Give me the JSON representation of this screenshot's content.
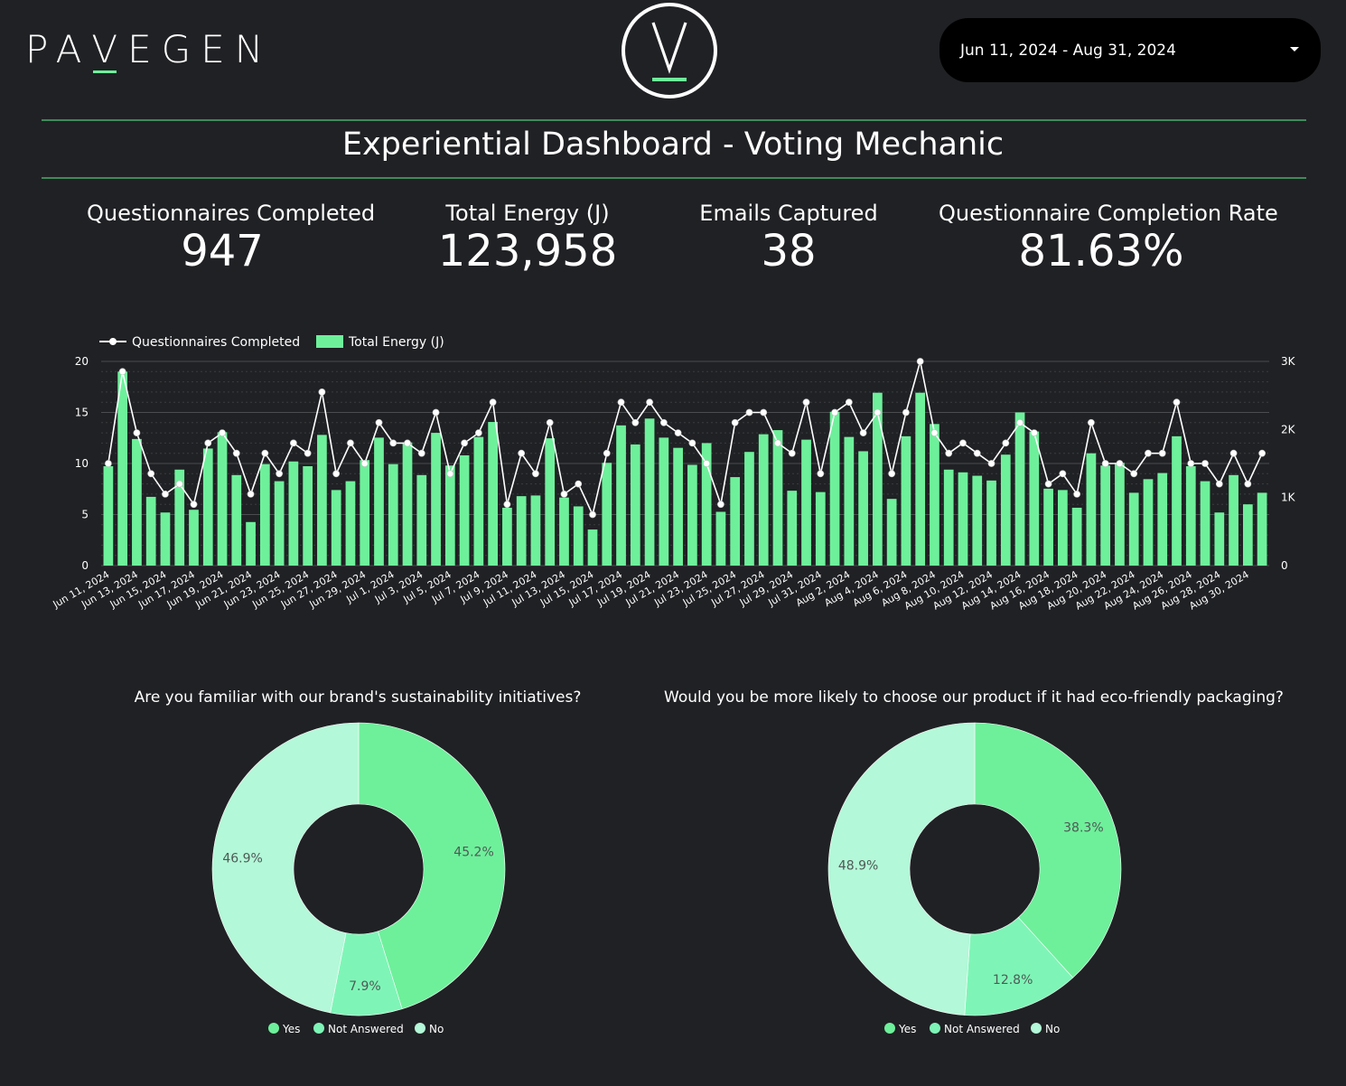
{
  "header": {
    "brand": "PAVEGEN",
    "logo_letter": "V",
    "date_range": "Jun 11, 2024 - Aug 31, 2024",
    "title": "Experiential Dashboard - Voting Mechanic"
  },
  "kpis": [
    {
      "label": "Questionnaires Completed",
      "value": "947"
    },
    {
      "label": "Total Energy (J)",
      "value": "123,958"
    },
    {
      "label": "Emails Captured",
      "value": "38"
    },
    {
      "label": "Questionnaire Completion Rate",
      "value": "81.63%"
    }
  ],
  "colors": {
    "background": "#202124",
    "accent": "#6ef09b",
    "bar": "#6ef09b",
    "line": "#ffffff",
    "yes": "#6ef09b",
    "not_answered": "#7ef5b7",
    "no": "#b3f8d8",
    "rule": "#3f8a5a"
  },
  "chart_data": [
    {
      "type": "bar",
      "title": "",
      "legend": [
        "Questionnaires Completed",
        "Total Energy (J)"
      ],
      "legend_position": "top-left",
      "grid": true,
      "categories": [
        "Jun 11, 2024",
        "Jun 12, 2024",
        "Jun 13, 2024",
        "Jun 14, 2024",
        "Jun 15, 2024",
        "Jun 16, 2024",
        "Jun 17, 2024",
        "Jun 18, 2024",
        "Jun 19, 2024",
        "Jun 20, 2024",
        "Jun 21, 2024",
        "Jun 22, 2024",
        "Jun 23, 2024",
        "Jun 24, 2024",
        "Jun 25, 2024",
        "Jun 26, 2024",
        "Jun 27, 2024",
        "Jun 28, 2024",
        "Jun 29, 2024",
        "Jun 30, 2024",
        "Jul 1, 2024",
        "Jul 2, 2024",
        "Jul 3, 2024",
        "Jul 4, 2024",
        "Jul 5, 2024",
        "Jul 6, 2024",
        "Jul 7, 2024",
        "Jul 8, 2024",
        "Jul 9, 2024",
        "Jul 10, 2024",
        "Jul 11, 2024",
        "Jul 12, 2024",
        "Jul 13, 2024",
        "Jul 14, 2024",
        "Jul 15, 2024",
        "Jul 16, 2024",
        "Jul 17, 2024",
        "Jul 18, 2024",
        "Jul 19, 2024",
        "Jul 20, 2024",
        "Jul 21, 2024",
        "Jul 22, 2024",
        "Jul 23, 2024",
        "Jul 24, 2024",
        "Jul 25, 2024",
        "Jul 26, 2024",
        "Jul 27, 2024",
        "Jul 28, 2024",
        "Jul 29, 2024",
        "Jul 30, 2024",
        "Jul 31, 2024",
        "Aug 1, 2024",
        "Aug 2, 2024",
        "Aug 3, 2024",
        "Aug 4, 2024",
        "Aug 5, 2024",
        "Aug 6, 2024",
        "Aug 7, 2024",
        "Aug 8, 2024",
        "Aug 9, 2024",
        "Aug 10, 2024",
        "Aug 11, 2024",
        "Aug 12, 2024",
        "Aug 13, 2024",
        "Aug 14, 2024",
        "Aug 15, 2024",
        "Aug 16, 2024",
        "Aug 17, 2024",
        "Aug 18, 2024",
        "Aug 19, 2024",
        "Aug 20, 2024",
        "Aug 21, 2024",
        "Aug 22, 2024",
        "Aug 23, 2024",
        "Aug 24, 2024",
        "Aug 25, 2024",
        "Aug 26, 2024",
        "Aug 27, 2024",
        "Aug 28, 2024",
        "Aug 29, 2024",
        "Aug 30, 2024",
        "Aug 31, 2024"
      ],
      "tick_labels": [
        "Jun 11, 2024",
        "Jun 13, 2024",
        "Jun 15, 2024",
        "Jun 17, 2024",
        "Jun 19, 2024",
        "Jun 21, 2024",
        "Jun 23, 2024",
        "Jun 25, 2024",
        "Jun 27, 2024",
        "Jun 29, 2024",
        "Jul 1, 2024",
        "Jul 3, 2024",
        "Jul 5, 2024",
        "Jul 7, 2024",
        "Jul 9, 2024",
        "Jul 11, 2024",
        "Jul 13, 2024",
        "Jul 15, 2024",
        "Jul 17, 2024",
        "Jul 19, 2024",
        "Jul 21, 2024",
        "Jul 23, 2024",
        "Jul 25, 2024",
        "Jul 27, 2024",
        "Jul 29, 2024",
        "Jul 31, 2024",
        "Aug 2, 2024",
        "Aug 4, 2024",
        "Aug 6, 2024",
        "Aug 8, 2024",
        "Aug 10, 2024",
        "Aug 12, 2024",
        "Aug 14, 2024",
        "Aug 16, 2024",
        "Aug 18, 2024",
        "Aug 20, 2024",
        "Aug 22, 2024",
        "Aug 24, 2024",
        "Aug 26, 2024",
        "Aug 28, 2024",
        "Aug 30, 2024"
      ],
      "series": [
        {
          "name": "Total Energy (J)",
          "kind": "bar",
          "axis": "right",
          "values": [
            1460,
            2850,
            1860,
            1010,
            780,
            1410,
            820,
            1720,
            1960,
            1330,
            640,
            1490,
            1240,
            1530,
            1460,
            1920,
            1110,
            1240,
            1550,
            1880,
            1490,
            1810,
            1330,
            1950,
            1470,
            1620,
            1890,
            2110,
            850,
            1020,
            1030,
            1870,
            1000,
            870,
            530,
            1510,
            2060,
            1780,
            2160,
            1880,
            1730,
            1480,
            1800,
            790,
            1300,
            1670,
            1930,
            1990,
            1100,
            1850,
            1080,
            2260,
            1890,
            1680,
            2540,
            980,
            1900,
            2540,
            2080,
            1410,
            1370,
            1320,
            1250,
            1630,
            2250,
            1970,
            1130,
            1110,
            850,
            1650,
            1470,
            1510,
            1070,
            1270,
            1360,
            1900,
            1460,
            1240,
            780,
            1330,
            900,
            1070
          ]
        },
        {
          "name": "Questionnaires Completed",
          "kind": "line",
          "axis": "left",
          "values": [
            10,
            19,
            13,
            9,
            7,
            8,
            6,
            12,
            13,
            11,
            7,
            11,
            9,
            12,
            11,
            17,
            9,
            12,
            10,
            14,
            12,
            12,
            11,
            15,
            9,
            12,
            13,
            16,
            6,
            11,
            9,
            14,
            7,
            8,
            5,
            11,
            16,
            14,
            16,
            14,
            13,
            12,
            10,
            6,
            14,
            15,
            15,
            12,
            11,
            16,
            9,
            15,
            16,
            13,
            15,
            9,
            15,
            20,
            13,
            11,
            12,
            11,
            10,
            12,
            14,
            13,
            8,
            9,
            7,
            14,
            10,
            10,
            9,
            11,
            11,
            16,
            10,
            10,
            8,
            11,
            8,
            11
          ]
        }
      ],
      "ylabel_left": "",
      "ylim_left": [
        0,
        20
      ],
      "yticks_left": [
        "0",
        "5",
        "10",
        "15",
        "20"
      ],
      "ylabel_right": "",
      "ylim_right": [
        0,
        3000
      ],
      "yticks_right": [
        "0",
        "1K",
        "2K",
        "3K"
      ]
    },
    {
      "type": "pie",
      "variant": "donut",
      "title": "Are you familiar with our brand's sustainability initiatives?",
      "labels": [
        "Yes",
        "Not Answered",
        "No"
      ],
      "values": [
        45.2,
        7.9,
        46.9
      ],
      "value_labels": [
        "45.2%",
        "7.9%",
        "46.9%"
      ],
      "legend_position": "bottom"
    },
    {
      "type": "pie",
      "variant": "donut",
      "title": "Would you be more likely to choose our product if it had eco-friendly packaging?",
      "labels": [
        "Yes",
        "Not Answered",
        "No"
      ],
      "values": [
        38.3,
        12.8,
        48.9
      ],
      "value_labels": [
        "38.3%",
        "12.8%",
        "48.9%"
      ],
      "legend_position": "bottom"
    }
  ]
}
